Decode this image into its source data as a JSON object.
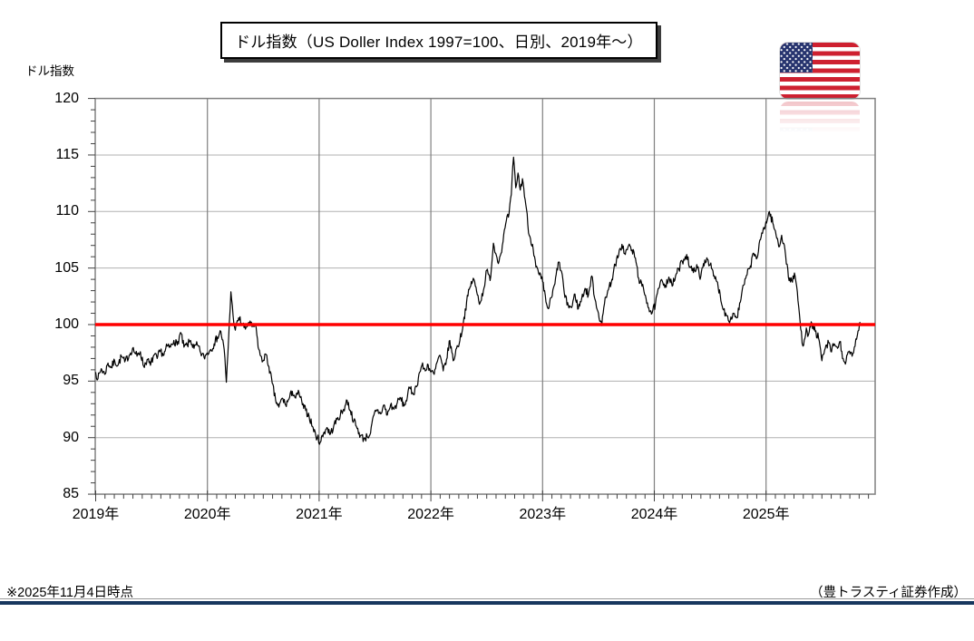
{
  "title": "ドル指数（US Doller Index 1997=100、日別、2019年～）",
  "y_axis_label": "ドル指数",
  "footnote_left": "※2025年11月4日時点",
  "footnote_right": "（豊トラスティ証券作成）",
  "flag_icon": "us-flag",
  "colors": {
    "series_line": "#000000",
    "reference_line": "#ff0000",
    "grid_horizontal": "#b0b0b0",
    "grid_vertical": "#7f7f7f",
    "plot_border": "#808080",
    "tick": "#404040",
    "footer_rule_navy": "#17375e",
    "footer_rule_gray": "#9a9a9a",
    "flag_red": "#ce2030",
    "flag_navy": "#26336e",
    "title_border": "#000000",
    "title_shadow": "#3c3c3c"
  },
  "chart_data": {
    "type": "line",
    "title": "ドル指数（US Doller Index 1997=100、日別、2019年～）",
    "xlabel": "",
    "ylabel": "ドル指数",
    "ylim": [
      85,
      120
    ],
    "xlim": [
      2019,
      2025.99
    ],
    "grid": true,
    "legend": "none",
    "reference_line_y": 100,
    "y_ticks": [
      85,
      90,
      95,
      100,
      105,
      110,
      115,
      120
    ],
    "x_ticks": [
      {
        "pos": 2019,
        "label": "2019年"
      },
      {
        "pos": 2020,
        "label": "2020年"
      },
      {
        "pos": 2021,
        "label": "2021年"
      },
      {
        "pos": 2022,
        "label": "2022年"
      },
      {
        "pos": 2023,
        "label": "2023年"
      },
      {
        "pos": 2024,
        "label": "2024年"
      },
      {
        "pos": 2025,
        "label": "2025年"
      }
    ],
    "series": [
      {
        "name": "ドル指数（1997=100）",
        "x": [
          2019.0,
          2019.02,
          2019.05,
          2019.08,
          2019.11,
          2019.14,
          2019.17,
          2019.2,
          2019.23,
          2019.26,
          2019.3,
          2019.33,
          2019.37,
          2019.4,
          2019.43,
          2019.46,
          2019.49,
          2019.52,
          2019.55,
          2019.58,
          2019.61,
          2019.64,
          2019.67,
          2019.7,
          2019.73,
          2019.76,
          2019.79,
          2019.82,
          2019.85,
          2019.88,
          2019.91,
          2019.94,
          2019.97,
          2020.0,
          2020.03,
          2020.06,
          2020.09,
          2020.12,
          2020.15,
          2020.17,
          2020.19,
          2020.21,
          2020.23,
          2020.25,
          2020.28,
          2020.31,
          2020.34,
          2020.37,
          2020.4,
          2020.43,
          2020.46,
          2020.49,
          2020.52,
          2020.55,
          2020.58,
          2020.61,
          2020.64,
          2020.67,
          2020.7,
          2020.73,
          2020.76,
          2020.79,
          2020.82,
          2020.85,
          2020.88,
          2020.91,
          2020.94,
          2020.97,
          2021.01,
          2021.04,
          2021.07,
          2021.1,
          2021.13,
          2021.16,
          2021.19,
          2021.22,
          2021.25,
          2021.28,
          2021.31,
          2021.34,
          2021.37,
          2021.4,
          2021.43,
          2021.46,
          2021.49,
          2021.52,
          2021.55,
          2021.58,
          2021.61,
          2021.64,
          2021.67,
          2021.7,
          2021.73,
          2021.76,
          2021.79,
          2021.81,
          2021.84,
          2021.87,
          2021.9,
          2021.92,
          2021.95,
          2021.97,
          2022.0,
          2022.03,
          2022.06,
          2022.08,
          2022.11,
          2022.14,
          2022.17,
          2022.2,
          2022.23,
          2022.26,
          2022.29,
          2022.32,
          2022.35,
          2022.38,
          2022.41,
          2022.44,
          2022.47,
          2022.5,
          2022.53,
          2022.56,
          2022.58,
          2022.61,
          2022.64,
          2022.67,
          2022.7,
          2022.72,
          2022.74,
          2022.76,
          2022.78,
          2022.8,
          2022.82,
          2022.85,
          2022.88,
          2022.91,
          2022.94,
          2022.97,
          2023.0,
          2023.03,
          2023.05,
          2023.08,
          2023.11,
          2023.14,
          2023.17,
          2023.2,
          2023.23,
          2023.26,
          2023.29,
          2023.32,
          2023.35,
          2023.38,
          2023.41,
          2023.44,
          2023.47,
          2023.5,
          2023.53,
          2023.56,
          2023.59,
          2023.62,
          2023.65,
          2023.68,
          2023.71,
          2023.74,
          2023.77,
          2023.8,
          2023.83,
          2023.86,
          2023.89,
          2023.92,
          2023.95,
          2023.98,
          2024.01,
          2024.04,
          2024.07,
          2024.1,
          2024.13,
          2024.16,
          2024.19,
          2024.22,
          2024.25,
          2024.29,
          2024.32,
          2024.35,
          2024.38,
          2024.41,
          2024.44,
          2024.47,
          2024.5,
          2024.53,
          2024.56,
          2024.59,
          2024.62,
          2024.65,
          2024.68,
          2024.71,
          2024.74,
          2024.77,
          2024.8,
          2024.83,
          2024.86,
          2024.89,
          2024.92,
          2024.95,
          2024.98,
          2025.01,
          2025.03,
          2025.06,
          2025.09,
          2025.12,
          2025.14,
          2025.17,
          2025.2,
          2025.23,
          2025.26,
          2025.28,
          2025.31,
          2025.33,
          2025.36,
          2025.38,
          2025.41,
          2025.44,
          2025.47,
          2025.5,
          2025.53,
          2025.56,
          2025.58,
          2025.61,
          2025.64,
          2025.66,
          2025.69,
          2025.71,
          2025.74,
          2025.77,
          2025.79,
          2025.81,
          2025.83,
          2025.845
        ],
        "y": [
          95.8,
          95.2,
          96.1,
          95.6,
          96.6,
          96.2,
          96.8,
          96.4,
          97.2,
          96.7,
          97.3,
          97.9,
          97.2,
          97.6,
          96.3,
          96.9,
          96.4,
          97.3,
          97.0,
          97.7,
          97.3,
          98.1,
          98.0,
          98.6,
          98.2,
          99.3,
          98.0,
          98.2,
          98.6,
          97.9,
          98.2,
          97.5,
          97.1,
          97.5,
          97.8,
          98.3,
          98.9,
          99.4,
          97.8,
          94.9,
          98.8,
          102.9,
          100.8,
          99.5,
          100.6,
          100.1,
          99.6,
          100.2,
          99.8,
          99.9,
          97.8,
          96.7,
          97.4,
          96.3,
          94.8,
          93.3,
          92.7,
          93.5,
          92.9,
          93.4,
          94.1,
          93.5,
          94.0,
          92.9,
          92.4,
          91.9,
          91.0,
          90.2,
          89.6,
          90.4,
          90.9,
          90.3,
          91.0,
          91.6,
          92.0,
          92.5,
          93.3,
          92.4,
          91.5,
          90.8,
          90.2,
          89.9,
          90.1,
          90.4,
          92.0,
          92.4,
          92.1,
          92.9,
          92.0,
          92.9,
          92.5,
          93.1,
          93.5,
          92.8,
          93.6,
          94.4,
          93.9,
          94.5,
          95.8,
          96.4,
          95.9,
          96.5,
          95.8,
          95.6,
          96.8,
          97.3,
          95.9,
          96.9,
          98.6,
          96.8,
          97.9,
          98.6,
          100.1,
          102.0,
          103.3,
          104.1,
          102.9,
          101.9,
          103.0,
          104.8,
          103.9,
          107.2,
          106.3,
          105.6,
          107.0,
          108.9,
          109.8,
          111.5,
          114.8,
          112.1,
          113.4,
          111.9,
          112.9,
          110.6,
          107.9,
          107.1,
          105.1,
          104.4,
          103.8,
          102.0,
          101.4,
          102.4,
          103.6,
          105.5,
          104.7,
          102.4,
          101.7,
          101.5,
          102.7,
          101.4,
          102.3,
          103.2,
          102.6,
          104.3,
          102.2,
          101.0,
          99.9,
          102.4,
          103.1,
          104.0,
          105.3,
          106.1,
          107.1,
          106.2,
          107.0,
          106.6,
          105.9,
          104.1,
          103.4,
          102.6,
          101.5,
          101.0,
          101.8,
          103.2,
          103.9,
          103.5,
          104.2,
          103.4,
          104.3,
          104.9,
          105.6,
          106.2,
          105.1,
          104.6,
          105.3,
          104.0,
          105.4,
          105.9,
          105.3,
          104.3,
          103.8,
          102.6,
          101.3,
          100.8,
          100.4,
          101.0,
          100.6,
          102.0,
          103.5,
          104.4,
          105.2,
          106.3,
          105.9,
          107.5,
          108.6,
          109.2,
          110.0,
          109.0,
          107.9,
          106.9,
          107.9,
          106.6,
          104.2,
          103.9,
          104.3,
          102.9,
          99.6,
          98.1,
          99.7,
          99.1,
          100.1,
          99.4,
          98.8,
          96.8,
          97.9,
          98.4,
          97.6,
          98.3,
          97.9,
          98.5,
          97.0,
          96.5,
          97.6,
          97.2,
          98.0,
          98.7,
          99.5,
          100.2
        ]
      }
    ]
  }
}
